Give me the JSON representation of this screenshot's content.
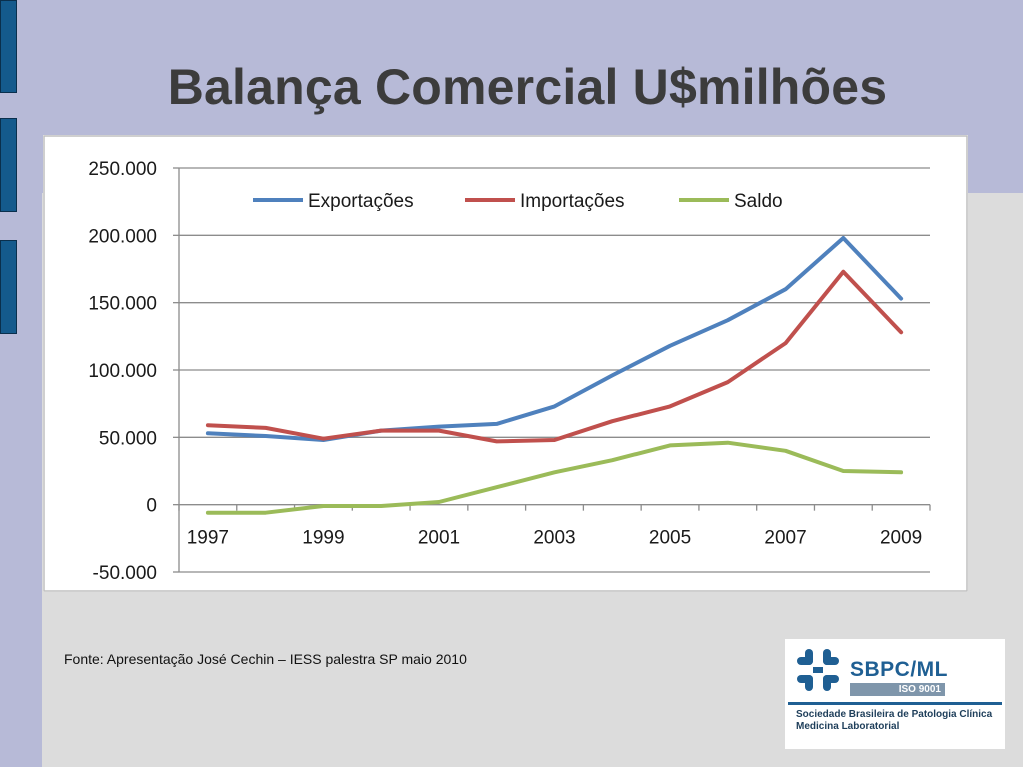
{
  "slide": {
    "title": "Balança Comercial U$milhões",
    "source": "Fonte: Apresentação José Cechin – IESS palestra SP maio 2010"
  },
  "logo": {
    "name": "SBPC/ML",
    "iso": "ISO 9001",
    "line1": "Sociedade Brasileira de Patologia Clínica",
    "line2": "Medicina Laboratorial"
  },
  "colors": {
    "exportacoes": "#4f81bd",
    "importacoes": "#c0504d",
    "saldo": "#9bbb59"
  },
  "chart_data": {
    "type": "line",
    "x": [
      1997,
      1998,
      1999,
      2000,
      2001,
      2002,
      2003,
      2004,
      2005,
      2006,
      2007,
      2008,
      2009
    ],
    "x_tick_labels": [
      "1997",
      "1999",
      "2001",
      "2003",
      "2005",
      "2007",
      "2009"
    ],
    "y_tick_labels": [
      "250.000",
      "200.000",
      "150.000",
      "100.000",
      "50.000",
      "0",
      "-50.000"
    ],
    "y_ticks": [
      250000,
      200000,
      150000,
      100000,
      50000,
      0,
      -50000
    ],
    "ylim": [
      -50000,
      250000
    ],
    "grid": true,
    "legend_position": "top",
    "series": [
      {
        "name": "Exportações",
        "values": [
          53000,
          51000,
          48000,
          55000,
          58000,
          60000,
          73000,
          96000,
          118000,
          137000,
          160000,
          198000,
          153000
        ]
      },
      {
        "name": "Importações",
        "values": [
          59000,
          57000,
          49000,
          55000,
          55000,
          47000,
          48000,
          62000,
          73000,
          91000,
          120000,
          173000,
          128000
        ]
      },
      {
        "name": "Saldo",
        "values": [
          -6000,
          -6000,
          -1000,
          -1000,
          2000,
          13000,
          24000,
          33000,
          44000,
          46000,
          40000,
          25000,
          24000
        ]
      }
    ]
  }
}
